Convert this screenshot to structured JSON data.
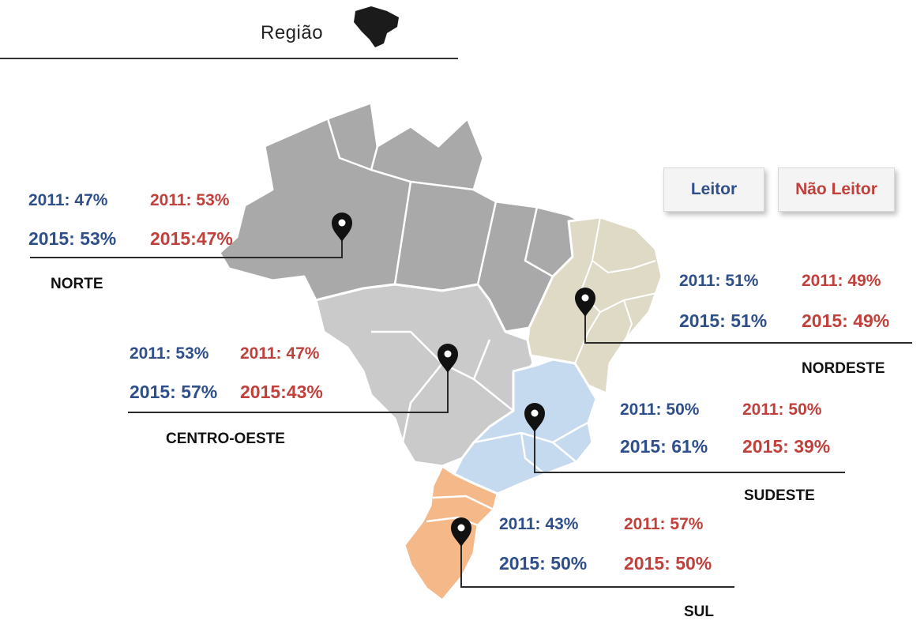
{
  "title": "Região",
  "legend": {
    "leitor": "Leitor",
    "nao_leitor": "Não Leitor"
  },
  "colors": {
    "leitor": "#2e4f8a",
    "nao_leitor": "#c0403c",
    "norte": "#a9a9a9",
    "centro_oeste": "#cacaca",
    "nordeste": "#dedac6",
    "sudeste": "#c5d9ef",
    "sul": "#f5b888"
  },
  "regions": {
    "norte": {
      "name": "NORTE",
      "leitor_2011": "2011: 47%",
      "leitor_2015": "2015: 53%",
      "nao_2011": "2011: 53%",
      "nao_2015": "2015:47%"
    },
    "nordeste": {
      "name": "NORDESTE",
      "leitor_2011": "2011: 51%",
      "leitor_2015": "2015: 51%",
      "nao_2011": "2011: 49%",
      "nao_2015": "2015: 49%"
    },
    "centro_oeste": {
      "name": "CENTRO-OESTE",
      "leitor_2011": "2011: 53%",
      "leitor_2015": "2015: 57%",
      "nao_2011": "2011: 47%",
      "nao_2015": "2015:43%"
    },
    "sudeste": {
      "name": "SUDESTE",
      "leitor_2011": "2011: 50%",
      "leitor_2015": "2015: 61%",
      "nao_2011": "2011: 50%",
      "nao_2015": "2015: 39%"
    },
    "sul": {
      "name": "SUL",
      "leitor_2011": "2011: 43%",
      "leitor_2015": "2015: 50%",
      "nao_2011": "2011: 57%",
      "nao_2015": "2015: 50%"
    }
  }
}
